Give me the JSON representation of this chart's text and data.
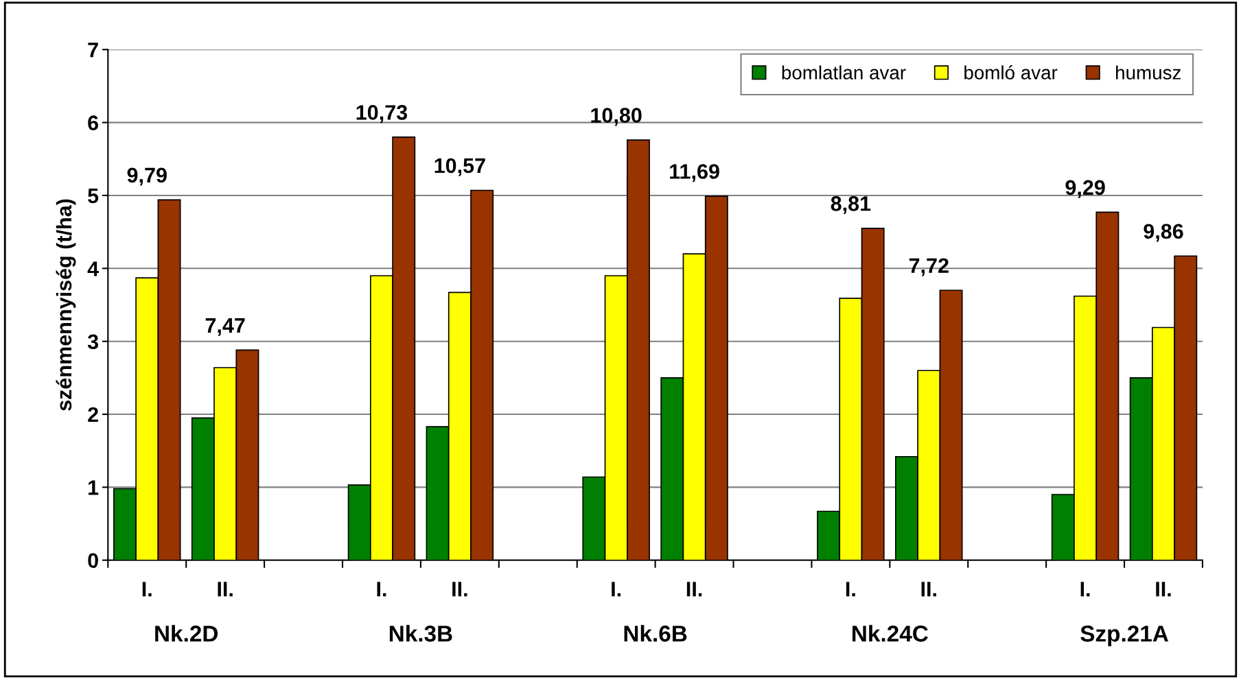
{
  "chart_data": {
    "type": "bar",
    "ylabel": "szénmennyiség (t/ha)",
    "categories": [
      "I.",
      "II.",
      null,
      "I.",
      "II.",
      null,
      "I.",
      "II.",
      null,
      "I.",
      "II.",
      null,
      "I.",
      "II."
    ],
    "series": [
      {
        "name": "bomlatlan avar",
        "color": "#008000",
        "values": [
          0.98,
          1.95,
          null,
          1.03,
          1.83,
          null,
          1.14,
          2.5,
          null,
          0.67,
          1.42,
          null,
          0.9,
          2.5
        ]
      },
      {
        "name": "bomló avar",
        "color": "#ffff00",
        "values": [
          3.87,
          2.64,
          null,
          3.9,
          3.67,
          null,
          3.9,
          4.2,
          null,
          3.59,
          2.6,
          null,
          3.62,
          3.19
        ]
      },
      {
        "name": "humusz",
        "color": "#993300",
        "values": [
          4.94,
          2.88,
          null,
          5.8,
          5.07,
          null,
          5.76,
          4.99,
          null,
          4.55,
          3.7,
          null,
          4.77,
          4.17
        ]
      }
    ],
    "totals": [
      "9,79",
      "7,47",
      null,
      "10,73",
      "10,57",
      null,
      "10,80",
      "11,69",
      null,
      "8,81",
      "7,72",
      null,
      "9,29",
      "9,86"
    ],
    "annotations": [
      "Nk.2D",
      "Nk.3B",
      "Nk.6B",
      "Nk.24C",
      "Szp.21A"
    ],
    "ylim": [
      0,
      7
    ],
    "yticks": [
      0,
      1,
      2,
      3,
      4,
      5,
      6,
      7
    ],
    "grid": "y",
    "legend": "top right"
  }
}
